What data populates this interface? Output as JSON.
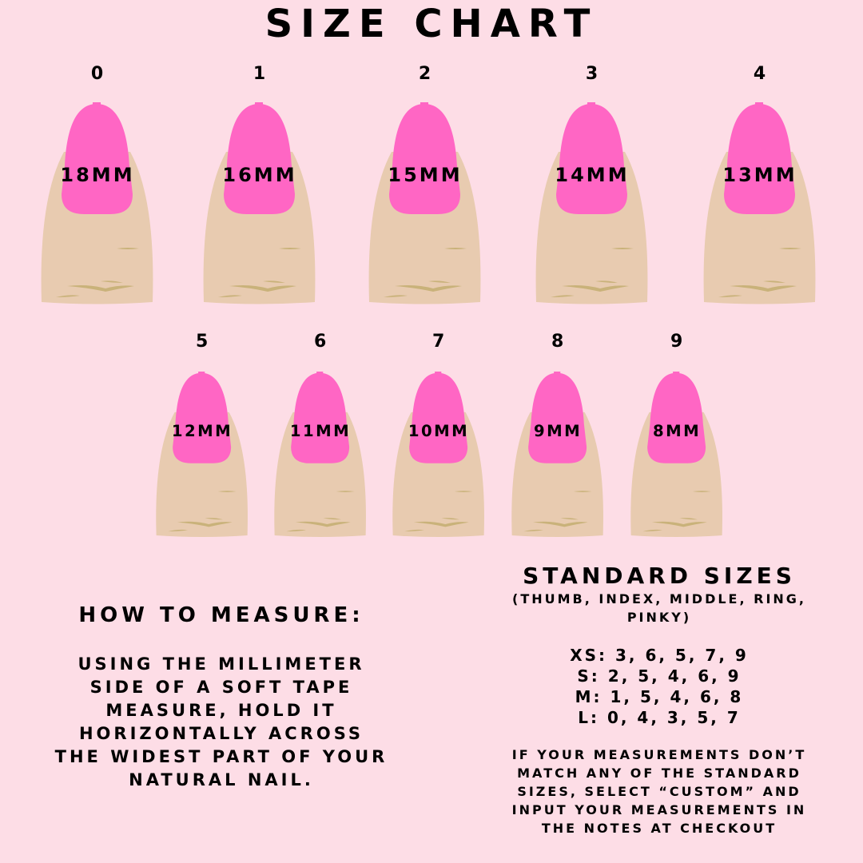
{
  "title": "SIZE CHART",
  "colors": {
    "background": "#fddde6",
    "nail": "#ff66c4",
    "skin": "#e8cbb0",
    "crease": "#c9b27a"
  },
  "fingers": [
    {
      "number": "0",
      "mm": "18MM"
    },
    {
      "number": "1",
      "mm": "16MM"
    },
    {
      "number": "2",
      "mm": "15MM"
    },
    {
      "number": "3",
      "mm": "14MM"
    },
    {
      "number": "4",
      "mm": "13MM"
    },
    {
      "number": "5",
      "mm": "12MM"
    },
    {
      "number": "6",
      "mm": "11MM"
    },
    {
      "number": "7",
      "mm": "10MM"
    },
    {
      "number": "8",
      "mm": "9MM"
    },
    {
      "number": "9",
      "mm": "8MM"
    }
  ],
  "how_to_measure": {
    "heading": "HOW TO MEASURE:",
    "lines": [
      "USING THE MILLIMETER",
      "SIDE OF A SOFT TAPE",
      "MEASURE, HOLD IT",
      "HORIZONTALLY ACROSS",
      "THE WIDEST PART OF YOUR",
      "NATURAL NAIL."
    ]
  },
  "standard_sizes": {
    "heading": "STANDARD SIZES",
    "subheading_lines": [
      "(THUMB, INDEX, MIDDLE, RING,",
      "PINKY)"
    ],
    "sizes": [
      "XS: 3, 6, 5, 7, 9",
      "S: 2, 5, 4, 6, 9",
      "M: 1, 5, 4, 6, 8",
      "L: 0, 4, 3, 5, 7"
    ],
    "note_lines": [
      "IF YOUR MEASUREMENTS DON’T",
      "MATCH ANY OF THE STANDARD",
      "SIZES, SELECT “CUSTOM” AND",
      "INPUT YOUR MEASUREMENTS IN",
      "THE NOTES AT CHECKOUT"
    ]
  }
}
